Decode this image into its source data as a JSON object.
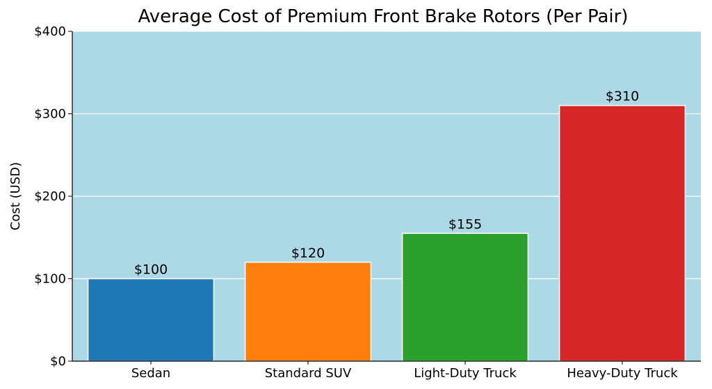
{
  "chart_data": {
    "type": "bar",
    "title": "Average Cost of Premium Front Brake Rotors (Per Pair)",
    "xlabel": "",
    "ylabel": "Cost (USD)",
    "categories": [
      "Sedan",
      "Standard SUV",
      "Light-Duty Truck",
      "Heavy-Duty Truck"
    ],
    "values": [
      100,
      120,
      155,
      310
    ],
    "value_labels": [
      "$100",
      "$120",
      "$155",
      "$310"
    ],
    "bar_colors": [
      "#1f77b4",
      "#ff7f0e",
      "#2ca02c",
      "#d62728"
    ],
    "ylim": [
      0,
      400
    ],
    "yticks": [
      0,
      100,
      200,
      300,
      400
    ],
    "ytick_labels": [
      "$0",
      "$100",
      "$200",
      "$300",
      "$400"
    ],
    "grid": true,
    "grid_axis": "y",
    "plot_background": "#add8e6",
    "legend": "none"
  }
}
